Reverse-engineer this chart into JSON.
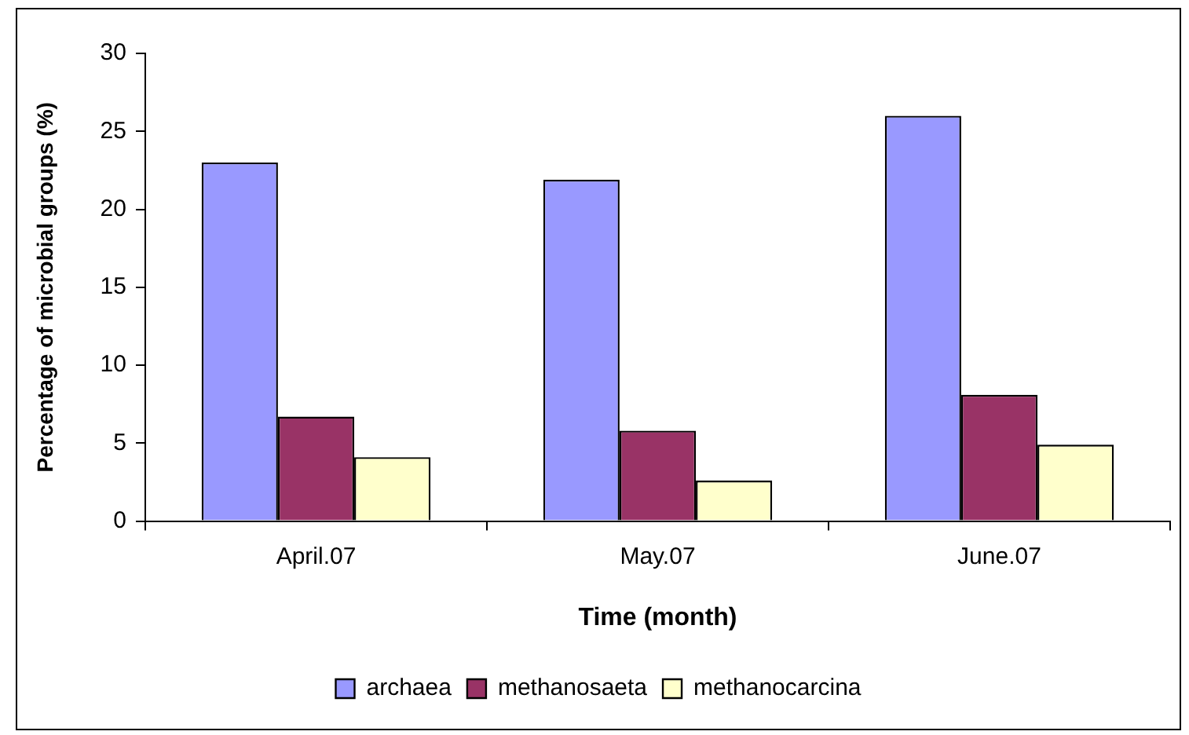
{
  "chart_data": {
    "type": "bar",
    "xlabel": "Time (month)",
    "ylabel": "Percentage of microbial groups (%)",
    "categories": [
      "April.07",
      "May.07",
      "June.07"
    ],
    "series": [
      {
        "name": "archaea",
        "color": "#9999ff",
        "values": [
          23.0,
          21.9,
          26.0
        ]
      },
      {
        "name": "methanosaeta",
        "color": "#993366",
        "values": [
          6.7,
          5.8,
          8.1
        ]
      },
      {
        "name": "methanocarcina",
        "color": "#ffffcc",
        "values": [
          4.1,
          2.6,
          4.9
        ]
      }
    ],
    "ylim": [
      0,
      30
    ],
    "yticks": [
      0,
      5,
      10,
      15,
      20,
      25,
      30
    ],
    "grid": false,
    "legend": "bottom"
  }
}
